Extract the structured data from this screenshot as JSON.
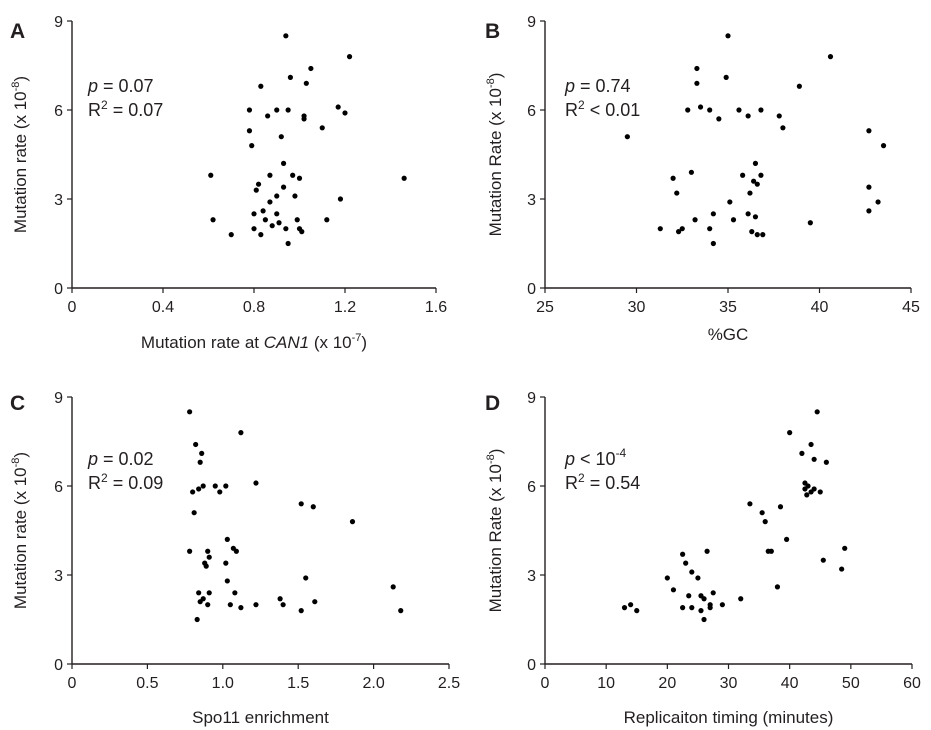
{
  "chart_data": [
    {
      "panel": "A",
      "type": "scatter",
      "xlabel_parts": [
        "Mutation rate at ",
        "CAN1",
        " (x 10",
        "-7",
        ")"
      ],
      "ylabel_parts": [
        "Mutation rate (x 10",
        "-8",
        ")"
      ],
      "xlim": [
        0,
        1.6
      ],
      "ylim": [
        0,
        9
      ],
      "xticks": [
        "0",
        "0.4",
        "0.8",
        "1.2",
        "1.6"
      ],
      "yticks": [
        "0",
        "3",
        "6",
        "9"
      ],
      "stat_p": "= 0.07",
      "stat_r2": "= 0.07",
      "points": [
        [
          0.61,
          3.8
        ],
        [
          0.62,
          2.3
        ],
        [
          0.7,
          1.8
        ],
        [
          0.78,
          6.0
        ],
        [
          0.78,
          5.3
        ],
        [
          0.79,
          4.8
        ],
        [
          0.8,
          2.5
        ],
        [
          0.8,
          2.0
        ],
        [
          0.81,
          3.3
        ],
        [
          0.82,
          3.5
        ],
        [
          0.83,
          6.8
        ],
        [
          0.83,
          1.8
        ],
        [
          0.84,
          2.6
        ],
        [
          0.85,
          2.3
        ],
        [
          0.86,
          5.8
        ],
        [
          0.87,
          3.8
        ],
        [
          0.87,
          2.9
        ],
        [
          0.88,
          2.1
        ],
        [
          0.9,
          6.0
        ],
        [
          0.9,
          3.1
        ],
        [
          0.9,
          2.5
        ],
        [
          0.91,
          2.2
        ],
        [
          0.92,
          5.1
        ],
        [
          0.93,
          4.2
        ],
        [
          0.93,
          3.4
        ],
        [
          0.94,
          8.5
        ],
        [
          0.94,
          2.0
        ],
        [
          0.95,
          6.0
        ],
        [
          0.95,
          1.5
        ],
        [
          0.96,
          7.1
        ],
        [
          0.97,
          3.8
        ],
        [
          0.98,
          3.1
        ],
        [
          0.99,
          2.3
        ],
        [
          1.0,
          3.7
        ],
        [
          1.0,
          2.0
        ],
        [
          1.01,
          1.9
        ],
        [
          1.02,
          5.8
        ],
        [
          1.02,
          5.7
        ],
        [
          1.03,
          6.9
        ],
        [
          1.05,
          7.4
        ],
        [
          1.1,
          5.4
        ],
        [
          1.12,
          2.3
        ],
        [
          1.17,
          6.1
        ],
        [
          1.18,
          3.0
        ],
        [
          1.2,
          5.9
        ],
        [
          1.22,
          7.8
        ],
        [
          1.46,
          3.7
        ]
      ]
    },
    {
      "panel": "B",
      "type": "scatter",
      "xlabel_parts": [
        "%GC"
      ],
      "ylabel_parts": [
        "Mutation Rate (x 10",
        "-8",
        ")"
      ],
      "xlim": [
        25,
        45
      ],
      "ylim": [
        0,
        9
      ],
      "xticks": [
        "25",
        "30",
        "35",
        "40",
        "45"
      ],
      "yticks": [
        "0",
        "3",
        "6",
        "9"
      ],
      "stat_p": "= 0.74",
      "stat_r2": "< 0.01",
      "points": [
        [
          29.5,
          5.1
        ],
        [
          31.3,
          2.0
        ],
        [
          32.0,
          3.7
        ],
        [
          32.2,
          3.2
        ],
        [
          32.3,
          1.9
        ],
        [
          32.5,
          2.0
        ],
        [
          32.8,
          6.0
        ],
        [
          33.0,
          3.9
        ],
        [
          33.2,
          2.3
        ],
        [
          33.3,
          7.4
        ],
        [
          33.3,
          6.9
        ],
        [
          33.5,
          6.1
        ],
        [
          34.0,
          6.0
        ],
        [
          34.0,
          2.0
        ],
        [
          34.2,
          2.5
        ],
        [
          34.2,
          1.5
        ],
        [
          34.5,
          5.7
        ],
        [
          35.0,
          8.5
        ],
        [
          34.9,
          7.1
        ],
        [
          35.1,
          2.9
        ],
        [
          35.3,
          2.3
        ],
        [
          35.6,
          6.0
        ],
        [
          35.8,
          3.8
        ],
        [
          36.1,
          2.5
        ],
        [
          36.1,
          5.8
        ],
        [
          36.2,
          3.2
        ],
        [
          36.3,
          1.9
        ],
        [
          36.4,
          3.6
        ],
        [
          36.5,
          4.2
        ],
        [
          36.5,
          2.4
        ],
        [
          36.6,
          3.5
        ],
        [
          36.6,
          1.8
        ],
        [
          36.8,
          3.8
        ],
        [
          36.8,
          6.0
        ],
        [
          36.9,
          1.8
        ],
        [
          37.8,
          5.8
        ],
        [
          38.0,
          5.4
        ],
        [
          38.9,
          6.8
        ],
        [
          39.5,
          2.2
        ],
        [
          40.6,
          7.8
        ],
        [
          42.7,
          5.3
        ],
        [
          42.7,
          3.4
        ],
        [
          42.7,
          2.6
        ],
        [
          43.2,
          2.9
        ],
        [
          43.5,
          4.8
        ]
      ]
    },
    {
      "panel": "C",
      "type": "scatter",
      "xlabel_parts": [
        "Spo11 enrichment"
      ],
      "ylabel_parts": [
        "Mutation rate (x 10",
        "-8",
        ")"
      ],
      "xlim": [
        0,
        2.5
      ],
      "ylim": [
        0,
        9
      ],
      "xticks": [
        "0",
        "0.5",
        "1.0",
        "1.5",
        "2.0",
        "2.5"
      ],
      "yticks": [
        "0",
        "3",
        "6",
        "9"
      ],
      "stat_p": "= 0.02",
      "stat_r2": "= 0.09",
      "points": [
        [
          0.78,
          8.5
        ],
        [
          0.78,
          3.8
        ],
        [
          0.8,
          5.8
        ],
        [
          0.81,
          5.1
        ],
        [
          0.82,
          7.4
        ],
        [
          0.83,
          1.5
        ],
        [
          0.84,
          2.4
        ],
        [
          0.84,
          5.9
        ],
        [
          0.85,
          6.8
        ],
        [
          0.85,
          2.1
        ],
        [
          0.86,
          7.1
        ],
        [
          0.87,
          2.2
        ],
        [
          0.87,
          6.0
        ],
        [
          0.88,
          3.4
        ],
        [
          0.89,
          3.3
        ],
        [
          0.9,
          2.0
        ],
        [
          0.9,
          3.8
        ],
        [
          0.91,
          2.4
        ],
        [
          0.91,
          3.6
        ],
        [
          0.95,
          6.0
        ],
        [
          0.98,
          5.8
        ],
        [
          1.02,
          6.0
        ],
        [
          1.02,
          3.4
        ],
        [
          1.03,
          4.2
        ],
        [
          1.03,
          2.8
        ],
        [
          1.05,
          2.0
        ],
        [
          1.07,
          3.9
        ],
        [
          1.08,
          2.4
        ],
        [
          1.09,
          3.8
        ],
        [
          1.12,
          1.9
        ],
        [
          1.12,
          7.8
        ],
        [
          1.22,
          2.0
        ],
        [
          1.22,
          6.1
        ],
        [
          1.38,
          2.2
        ],
        [
          1.4,
          2.0
        ],
        [
          1.52,
          5.4
        ],
        [
          1.52,
          1.8
        ],
        [
          1.55,
          2.9
        ],
        [
          1.6,
          5.3
        ],
        [
          1.61,
          2.1
        ],
        [
          1.86,
          4.8
        ],
        [
          2.13,
          2.6
        ],
        [
          2.18,
          1.8
        ]
      ]
    },
    {
      "panel": "D",
      "type": "scatter",
      "xlabel_parts": [
        "Replicaiton timing (minutes)"
      ],
      "ylabel_parts": [
        "Mutation Rate (x 10",
        "-8",
        ")"
      ],
      "xlim": [
        0,
        60
      ],
      "ylim": [
        0,
        9
      ],
      "xticks": [
        "0",
        "10",
        "20",
        "30",
        "40",
        "50",
        "60"
      ],
      "yticks": [
        "0",
        "3",
        "6",
        "9"
      ],
      "stat_p": "< 10",
      "stat_p_sup": "-4",
      "stat_r2": "= 0.54",
      "points": [
        [
          13.0,
          1.9
        ],
        [
          14.0,
          2.0
        ],
        [
          15.0,
          1.8
        ],
        [
          20.0,
          2.9
        ],
        [
          21.0,
          2.5
        ],
        [
          22.5,
          1.9
        ],
        [
          22.5,
          3.7
        ],
        [
          23.0,
          3.4
        ],
        [
          23.5,
          2.3
        ],
        [
          24.0,
          1.9
        ],
        [
          24.0,
          3.1
        ],
        [
          25.0,
          2.9
        ],
        [
          25.5,
          2.3
        ],
        [
          25.5,
          1.8
        ],
        [
          26.0,
          2.2
        ],
        [
          26.0,
          1.5
        ],
        [
          26.5,
          3.8
        ],
        [
          27.0,
          1.9
        ],
        [
          27.0,
          2.0
        ],
        [
          27.5,
          2.4
        ],
        [
          29.0,
          2.0
        ],
        [
          32.0,
          2.2
        ],
        [
          33.5,
          5.4
        ],
        [
          35.5,
          5.1
        ],
        [
          36.0,
          4.8
        ],
        [
          36.5,
          3.8
        ],
        [
          37.0,
          3.8
        ],
        [
          38.0,
          2.6
        ],
        [
          38.5,
          5.3
        ],
        [
          39.5,
          4.2
        ],
        [
          40.0,
          7.8
        ],
        [
          42.0,
          7.1
        ],
        [
          42.5,
          6.1
        ],
        [
          42.5,
          5.9
        ],
        [
          42.8,
          5.7
        ],
        [
          43.0,
          6.0
        ],
        [
          43.5,
          5.8
        ],
        [
          43.5,
          7.4
        ],
        [
          44.0,
          5.9
        ],
        [
          44.0,
          6.9
        ],
        [
          44.5,
          8.5
        ],
        [
          45.0,
          5.8
        ],
        [
          45.5,
          3.5
        ],
        [
          46.0,
          6.8
        ],
        [
          48.5,
          3.2
        ],
        [
          49.0,
          3.9
        ]
      ]
    }
  ]
}
